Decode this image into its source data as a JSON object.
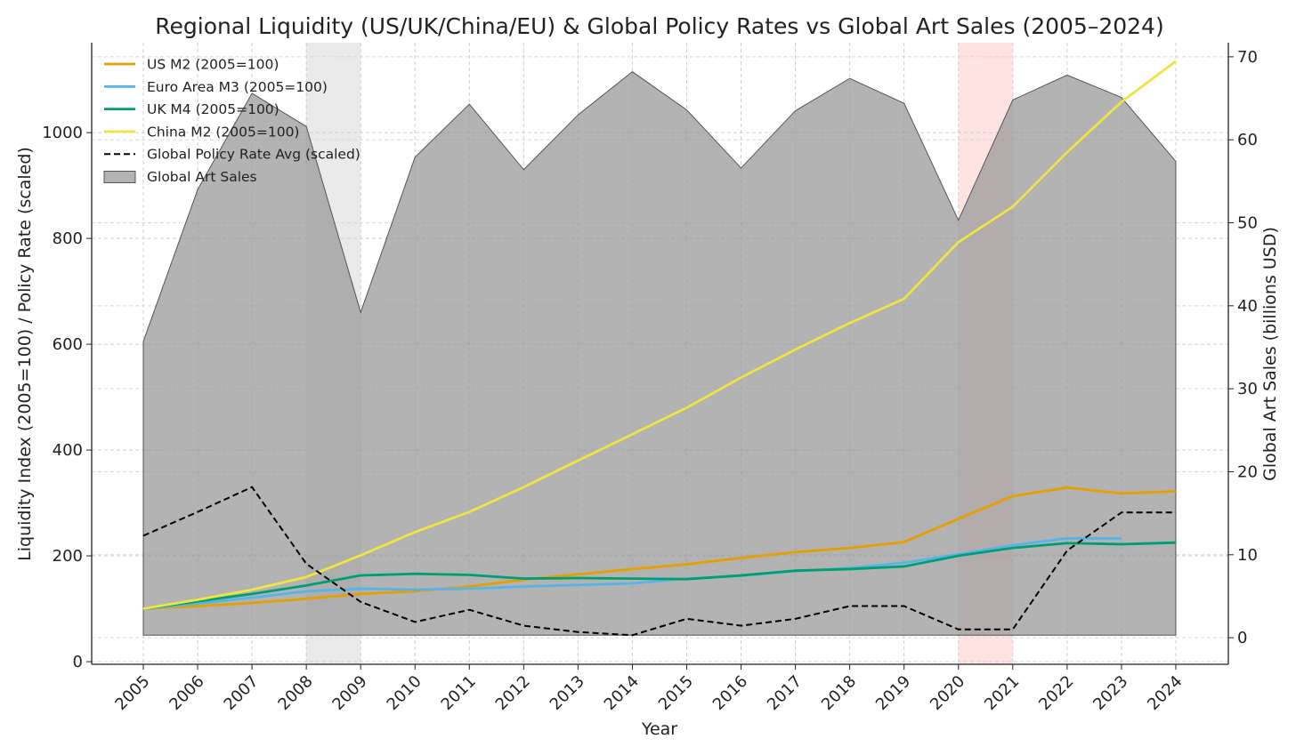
{
  "chart_data": {
    "type": "line",
    "title": "Regional Liquidity (US/UK/China/EU) & Global Policy Rates vs Global Art Sales (2005–2024)",
    "xlabel": "Year",
    "ylabel": "Liquidity Index (2005=100) / Policy Rate (scaled)",
    "y2label": "Global Art Sales (billions USD)",
    "categories": [
      "2005",
      "2006",
      "2007",
      "2008",
      "2009",
      "2010",
      "2011",
      "2012",
      "2013",
      "2014",
      "2015",
      "2016",
      "2017",
      "2018",
      "2019",
      "2020",
      "2021",
      "2022",
      "2023",
      "2024"
    ],
    "ylim": [
      -5,
      1170
    ],
    "y_ticks": [
      0,
      200,
      400,
      600,
      800,
      1000
    ],
    "y2lim": [
      -3.2,
      71.7
    ],
    "y2_ticks": [
      0,
      10,
      20,
      30,
      40,
      50,
      60,
      70
    ],
    "grid": true,
    "legend_position": "top-left",
    "series": [
      {
        "name": "US M2 (2005=100)",
        "axis": "left",
        "style": "solid",
        "color": "#E69F00",
        "values": [
          100,
          105,
          111,
          119,
          128,
          133,
          142,
          155,
          165,
          175,
          184,
          196,
          207,
          215,
          226,
          270,
          313,
          329,
          318,
          322
        ]
      },
      {
        "name": "Euro Area M3 (2005=100)",
        "axis": "left",
        "style": "solid",
        "color": "#56B4E9",
        "values": [
          100,
          110,
          121,
          133,
          138,
          136,
          138,
          142,
          145,
          148,
          157,
          162,
          171,
          177,
          187,
          203,
          220,
          233,
          233,
          null
        ]
      },
      {
        "name": "UK M4 (2005=100)",
        "axis": "left",
        "style": "solid",
        "color": "#009E73",
        "values": [
          100,
          114,
          128,
          144,
          163,
          166,
          164,
          157,
          158,
          157,
          156,
          163,
          172,
          175,
          180,
          200,
          215,
          224,
          222,
          225
        ]
      },
      {
        "name": "China M2 (2005=100)",
        "axis": "left",
        "style": "solid",
        "color": "#F0E442",
        "values": [
          100,
          117,
          136,
          160,
          201,
          245,
          283,
          330,
          380,
          430,
          480,
          537,
          590,
          640,
          686,
          793,
          860,
          963,
          1058,
          1135
        ]
      },
      {
        "name": "Global Policy Rate Avg (scaled)",
        "axis": "left",
        "style": "dashed",
        "color": "#000000",
        "values": [
          238,
          283,
          330,
          185,
          113,
          75,
          98,
          68,
          56,
          50,
          81,
          68,
          81,
          105,
          105,
          61,
          61,
          210,
          282,
          282
        ]
      },
      {
        "name": "Global Art Sales",
        "axis": "right",
        "type": "area",
        "color": "#999999",
        "values": [
          35.7,
          54.0,
          65.6,
          61.6,
          39.2,
          57.9,
          64.3,
          56.4,
          63.0,
          68.2,
          63.6,
          56.6,
          63.5,
          67.4,
          64.4,
          50.3,
          64.8,
          67.8,
          65.1,
          57.4
        ]
      }
    ],
    "shaded_periods": [
      {
        "label": "2008–2009",
        "from": "2008",
        "to": "2009",
        "color": "#d9d9d9"
      },
      {
        "label": "2020–2021",
        "from": "2020",
        "to": "2021",
        "color": "#ffcccc"
      }
    ]
  }
}
